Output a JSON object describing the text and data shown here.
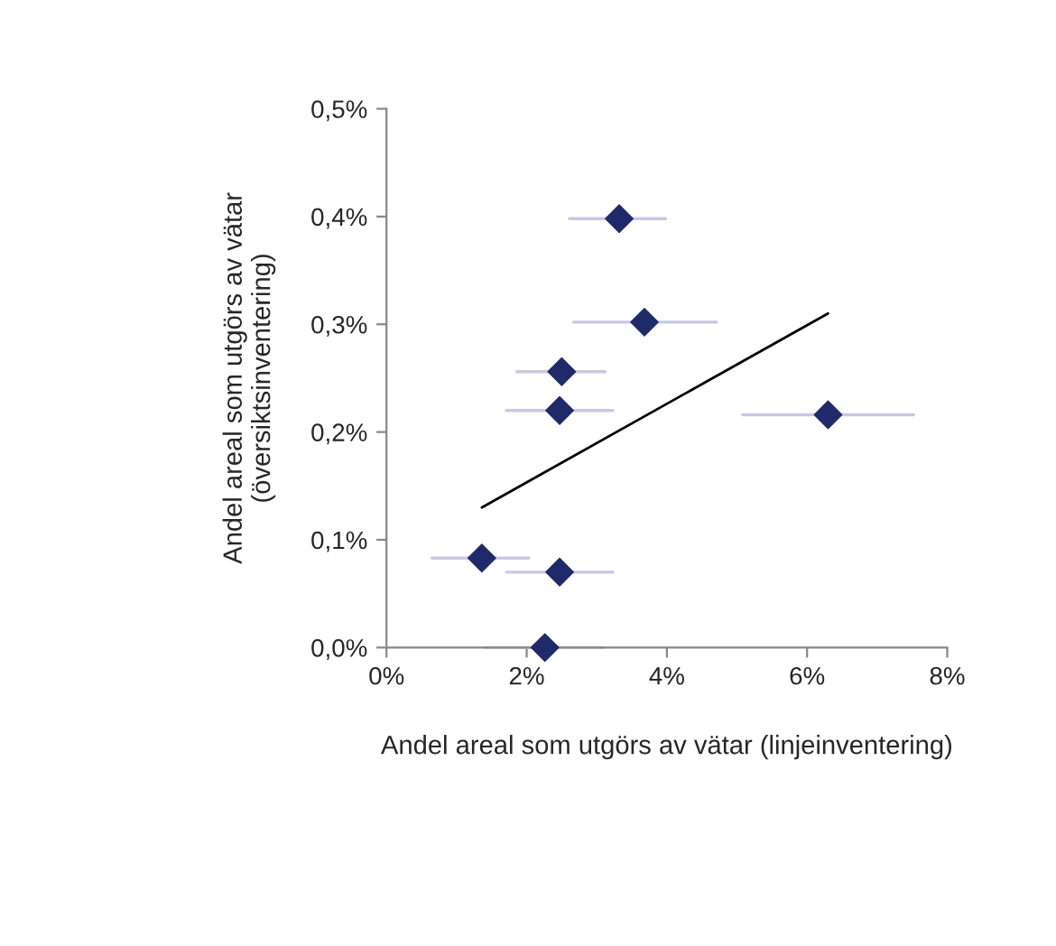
{
  "chart_data": {
    "type": "scatter",
    "xlabel": "Andel areal som utgörs av vätar (linjeinventering)",
    "ylabel": "Andel areal som utgörs av vätar\n(översiktsinventering)",
    "xlim": [
      0,
      8
    ],
    "xticks": [
      {
        "value": 0,
        "label": "0%"
      },
      {
        "value": 2,
        "label": "2%"
      },
      {
        "value": 4,
        "label": "4%"
      },
      {
        "value": 6,
        "label": "6%"
      },
      {
        "value": 8,
        "label": "8%"
      }
    ],
    "ylim": [
      0,
      0.5
    ],
    "yticks": [
      {
        "value": 0,
        "label": "0,0%"
      },
      {
        "value": 0.1,
        "label": "0,1%"
      },
      {
        "value": 0.2,
        "label": "0,2%"
      },
      {
        "value": 0.3,
        "label": "0,3%"
      },
      {
        "value": 0.4,
        "label": "0,4%"
      },
      {
        "value": 0.5,
        "label": "0,5%"
      }
    ],
    "grid": false,
    "legend": false,
    "series": [
      {
        "marker": "diamond",
        "color": "#1f2a6b",
        "x": [
          3.32,
          3.68,
          2.5,
          2.47,
          6.3,
          1.36,
          2.47,
          2.26
        ],
        "values": [
          0.398,
          0.302,
          0.256,
          0.22,
          0.216,
          0.083,
          0.07,
          0.0
        ],
        "xerrors": [
          [
            2.61,
            3.98
          ],
          [
            2.67,
            4.71
          ],
          [
            1.86,
            3.12
          ],
          [
            1.71,
            3.23
          ],
          [
            5.08,
            7.52
          ],
          [
            0.65,
            2.03
          ],
          [
            1.71,
            3.23
          ],
          [
            1.39,
            3.1
          ]
        ]
      },
      {
        "type": "line",
        "color": "#000000",
        "x": [
          1.36,
          6.3
        ],
        "values": [
          0.13,
          0.31
        ]
      }
    ]
  }
}
